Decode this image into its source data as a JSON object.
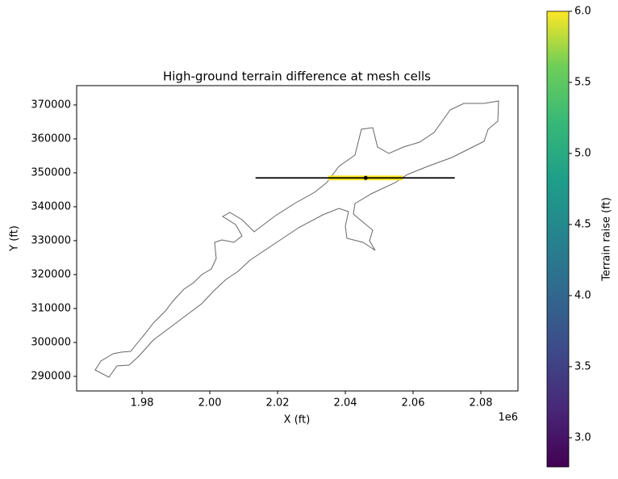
{
  "chart_data": {
    "type": "map-line",
    "title": "High-ground terrain difference at mesh cells",
    "x_label": "X (ft)",
    "y_label": "Y (ft)",
    "x_offset_label": "1e6",
    "xlim": [
      1960700,
      2090950
    ],
    "ylim": [
      285700,
      375700
    ],
    "xticks": [
      {
        "value": 1980000,
        "label": "1.98"
      },
      {
        "value": 2000000,
        "label": "2.00"
      },
      {
        "value": 2020000,
        "label": "2.02"
      },
      {
        "value": 2040000,
        "label": "2.04"
      },
      {
        "value": 2060000,
        "label": "2.06"
      },
      {
        "value": 2080000,
        "label": "2.08"
      }
    ],
    "yticks": [
      290000,
      300000,
      310000,
      320000,
      330000,
      340000,
      350000,
      360000,
      370000
    ],
    "line": {
      "x": [
        2013500,
        2072300
      ],
      "y": [
        348500,
        348500
      ],
      "color": "#000000"
    },
    "point": {
      "x": 2046000,
      "y": 348500
    },
    "cells": {
      "x": [
        2035000,
        2057000
      ],
      "y": [
        347800,
        349200
      ],
      "value": 6.0
    },
    "colorbar": {
      "label": "Terrain raise (ft)",
      "clim": [
        2.795,
        6.0
      ],
      "ticks": [
        {
          "value": 3.0,
          "label": "3.0"
        },
        3.5,
        {
          "value": 4.0,
          "label": "4.0"
        },
        4.5,
        {
          "value": 5.0,
          "label": "5.0"
        },
        5.5,
        {
          "value": 6.0,
          "label": "6.0"
        }
      ]
    }
  }
}
